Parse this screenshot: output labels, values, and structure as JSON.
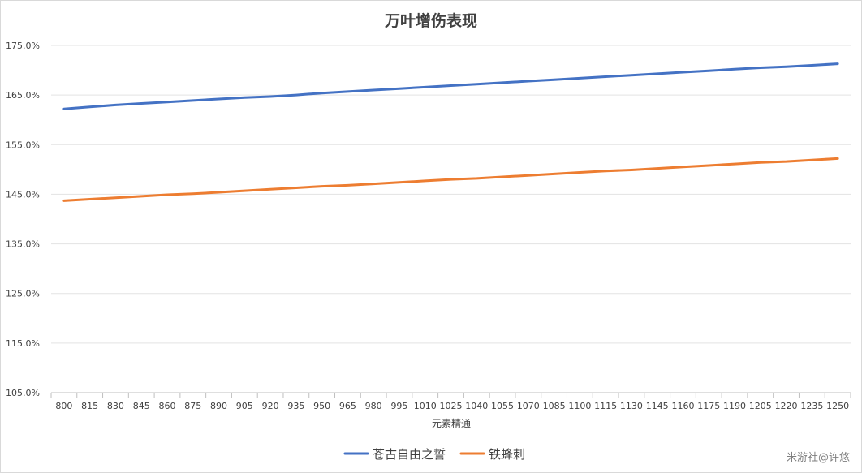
{
  "chart_data": {
    "type": "line",
    "title": "万叶增伤表现",
    "xlabel": "元素精通",
    "ylabel": "",
    "x": [
      800,
      815,
      830,
      845,
      860,
      875,
      890,
      905,
      920,
      935,
      950,
      965,
      980,
      995,
      1010,
      1025,
      1040,
      1055,
      1070,
      1085,
      1100,
      1115,
      1130,
      1145,
      1160,
      1175,
      1190,
      1205,
      1220,
      1235,
      1250
    ],
    "x_tick_labels": [
      "800",
      "815",
      "830",
      "845",
      "860",
      "875",
      "890",
      "905",
      "920",
      "935",
      "950",
      "965",
      "980",
      "995",
      "1010",
      "1025",
      "1040",
      "1055",
      "1070",
      "1085",
      "1100",
      "1115",
      "1130",
      "1145",
      "1160",
      "1175",
      "1190",
      "1205",
      "1220",
      "1235",
      "1250"
    ],
    "ylim": [
      1.05,
      1.75
    ],
    "y_ticks": [
      1.05,
      1.15,
      1.25,
      1.35,
      1.45,
      1.55,
      1.65,
      1.75
    ],
    "y_tick_labels": [
      "105.0%",
      "115.0%",
      "125.0%",
      "135.0%",
      "145.0%",
      "155.0%",
      "165.0%",
      "175.0%"
    ],
    "grid": "horizontal",
    "legend_position": "bottom",
    "series": [
      {
        "name": "苍古自由之誓",
        "color": "#4472c4",
        "values": [
          1.622,
          1.626,
          1.63,
          1.633,
          1.636,
          1.639,
          1.642,
          1.645,
          1.647,
          1.65,
          1.654,
          1.657,
          1.66,
          1.663,
          1.666,
          1.669,
          1.672,
          1.675,
          1.678,
          1.681,
          1.684,
          1.687,
          1.69,
          1.693,
          1.696,
          1.699,
          1.702,
          1.705,
          1.707,
          1.71,
          1.713
        ]
      },
      {
        "name": "铁蜂刺",
        "color": "#ed7d31",
        "values": [
          1.437,
          1.44,
          1.443,
          1.446,
          1.449,
          1.451,
          1.454,
          1.457,
          1.46,
          1.463,
          1.466,
          1.468,
          1.471,
          1.474,
          1.477,
          1.48,
          1.482,
          1.485,
          1.488,
          1.491,
          1.494,
          1.497,
          1.499,
          1.502,
          1.505,
          1.508,
          1.511,
          1.514,
          1.516,
          1.519,
          1.522
        ]
      }
    ]
  },
  "watermark": "米游社@许悠"
}
